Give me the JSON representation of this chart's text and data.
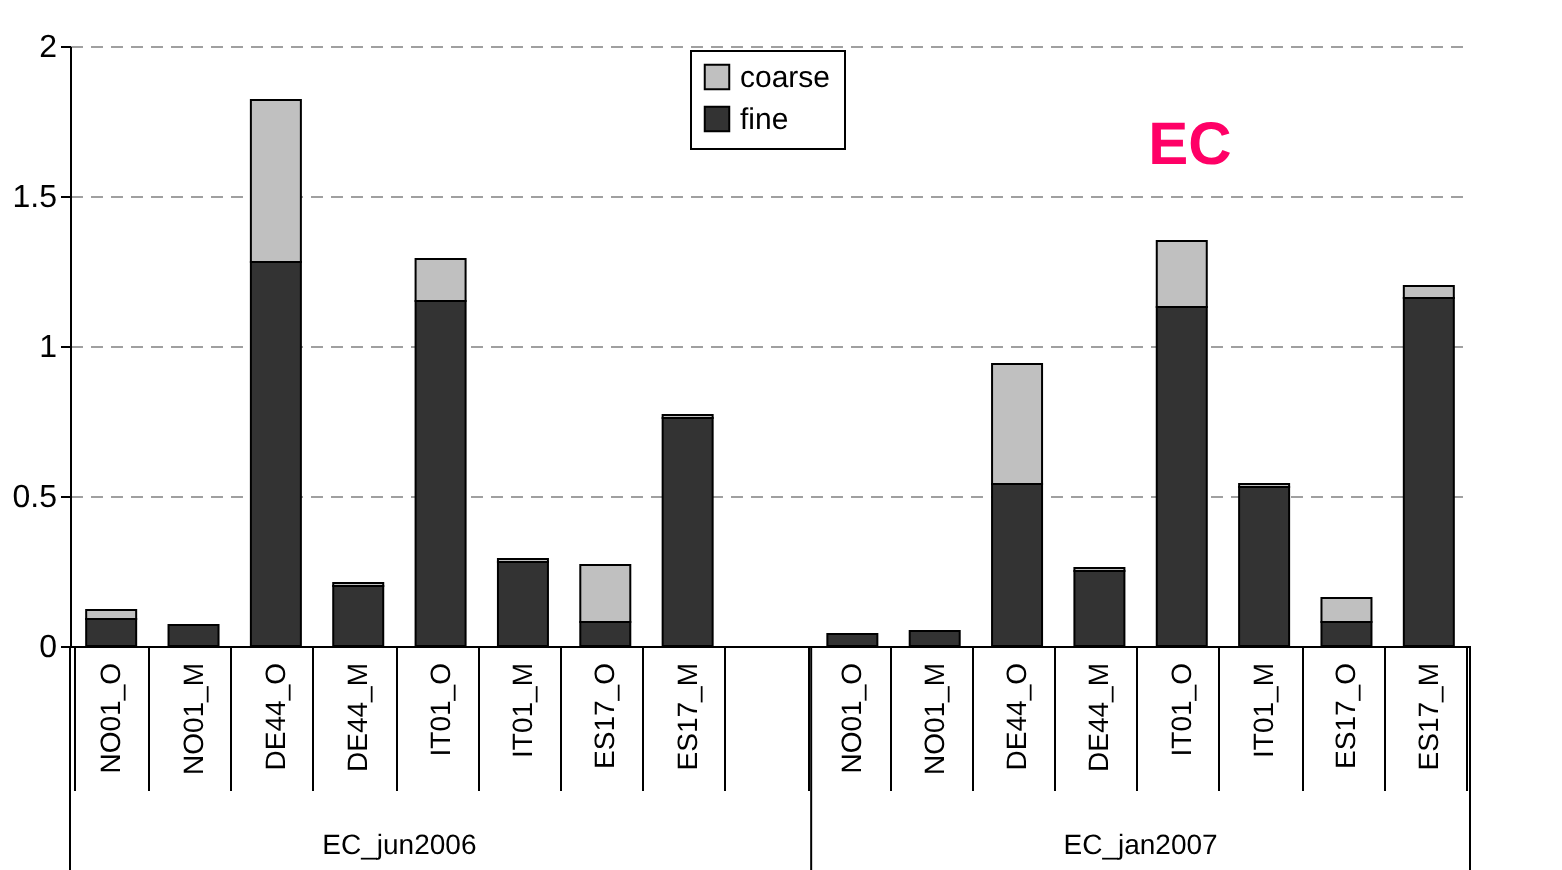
{
  "chart_data": {
    "type": "bar",
    "title": "EC",
    "stacked": true,
    "categories": [
      "NO01_O",
      "NO01_M",
      "DE44_O",
      "DE44_M",
      "IT01_O",
      "IT01_M",
      "ES17_O",
      "ES17_M",
      null,
      "NO01_O",
      "NO01_M",
      "DE44_O",
      "DE44_M",
      "IT01_O",
      "IT01_M",
      "ES17_O",
      "ES17_M"
    ],
    "series": [
      {
        "name": "fine",
        "color": "#333333",
        "values": [
          0.09,
          0.07,
          1.28,
          0.2,
          1.15,
          0.28,
          0.08,
          0.76,
          null,
          0.04,
          0.05,
          0.54,
          0.25,
          1.13,
          0.53,
          0.08,
          1.16
        ]
      },
      {
        "name": "coarse",
        "color": "#c0c0c0",
        "values": [
          0.03,
          0,
          0.54,
          0.01,
          0.14,
          0.01,
          0.19,
          0.01,
          null,
          0,
          0,
          0.4,
          0.01,
          0.22,
          0.01,
          0.08,
          0.04
        ]
      }
    ],
    "annotations": [
      "EC_jun2006",
      "EC_jan2007"
    ],
    "ylim": [
      0,
      2
    ],
    "yticks": [
      0,
      0.5,
      1,
      1.5,
      2
    ],
    "grid": "y",
    "legend": "top"
  }
}
